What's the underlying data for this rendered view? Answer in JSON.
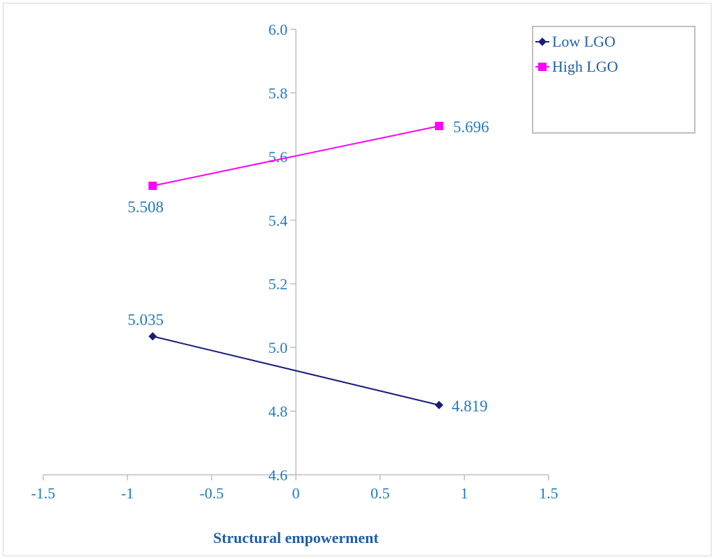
{
  "chart_data": {
    "type": "line",
    "xlabel": "Structural empowerment",
    "ylabel": "",
    "xlim": [
      -1.5,
      1.5
    ],
    "ylim": [
      4.6,
      6.0
    ],
    "x_ticks": [
      -1.5,
      -1,
      -0.5,
      0,
      0.5,
      1,
      1.5
    ],
    "x_tick_labels": [
      "-1.5",
      "-1",
      "-0.5",
      "0",
      "0.5",
      "1",
      "1.5"
    ],
    "y_ticks": [
      4.6,
      4.8,
      5.0,
      5.2,
      5.4,
      5.6,
      5.8,
      6.0
    ],
    "y_tick_labels": [
      "4.6",
      "4.8",
      "5.0",
      "5.2",
      "5.4",
      "5.6",
      "5.8",
      "6.0"
    ],
    "grid": false,
    "legend_position": "top-right",
    "series": [
      {
        "name": "Low LGO",
        "color": "#1b1b7a",
        "marker": "diamond",
        "x": [
          -0.85,
          0.85
        ],
        "y": [
          5.035,
          4.819
        ],
        "labels": [
          "5.035",
          "4.819"
        ]
      },
      {
        "name": "High LGO",
        "color": "#ff00ff",
        "marker": "square",
        "x": [
          -0.85,
          0.85
        ],
        "y": [
          5.508,
          5.696
        ],
        "labels": [
          "5.508",
          "5.696"
        ]
      }
    ]
  }
}
